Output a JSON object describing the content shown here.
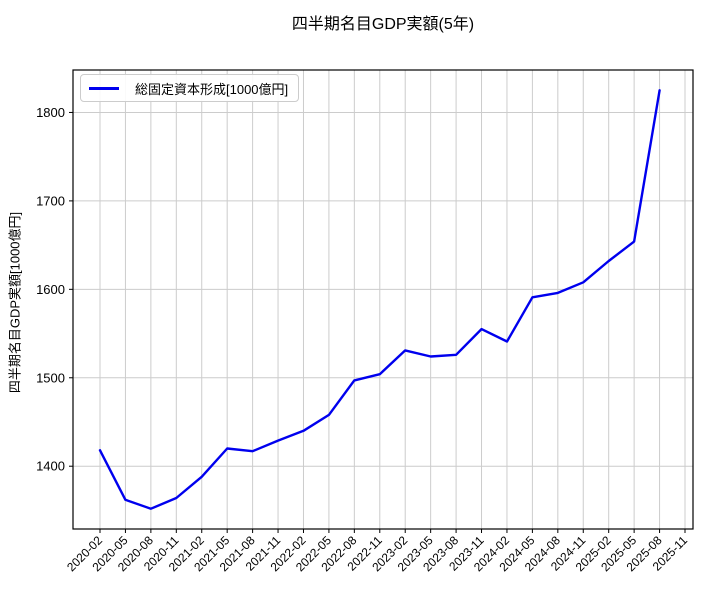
{
  "title": "四半期名目GDP実額(5年)",
  "chart_data": {
    "type": "line",
    "title": "四半期名目GDP実額(5年)",
    "xlabel": "",
    "ylabel": "四半期名目GDP実額[1000億円]",
    "grid": true,
    "legend_position": "upper left",
    "line_color": "#0000ee",
    "x_tick_labels": [
      "2020-02",
      "2020-05",
      "2020-08",
      "2020-11",
      "2021-02",
      "2021-05",
      "2021-08",
      "2021-11",
      "2022-02",
      "2022-05",
      "2022-08",
      "2022-11",
      "2023-02",
      "2023-05",
      "2023-08",
      "2023-11",
      "2024-02",
      "2024-05",
      "2024-08",
      "2024-11",
      "2025-02",
      "2025-05",
      "2025-08",
      "2025-11"
    ],
    "categories": [
      "2020-02",
      "2020-05",
      "2020-08",
      "2020-11",
      "2021-02",
      "2021-05",
      "2021-08",
      "2021-11",
      "2022-02",
      "2022-05",
      "2022-08",
      "2022-11",
      "2023-02",
      "2023-05",
      "2023-08",
      "2023-11",
      "2024-02",
      "2024-05",
      "2024-08",
      "2024-11",
      "2025-02",
      "2025-05",
      "2025-08"
    ],
    "series": [
      {
        "name": "総固定資本形成[1000億円]",
        "color": "#0000ee",
        "values": [
          1418,
          1362,
          1352,
          1364,
          1388,
          1420,
          1417,
          1429,
          1440,
          1458,
          1497,
          1504,
          1531,
          1524,
          1526,
          1555,
          1541,
          1591,
          1596,
          1608,
          1632,
          1654,
          1825
        ]
      }
    ],
    "yticks": [
      1400,
      1500,
      1600,
      1700,
      1800
    ],
    "ylim": [
      1329,
      1848
    ]
  }
}
